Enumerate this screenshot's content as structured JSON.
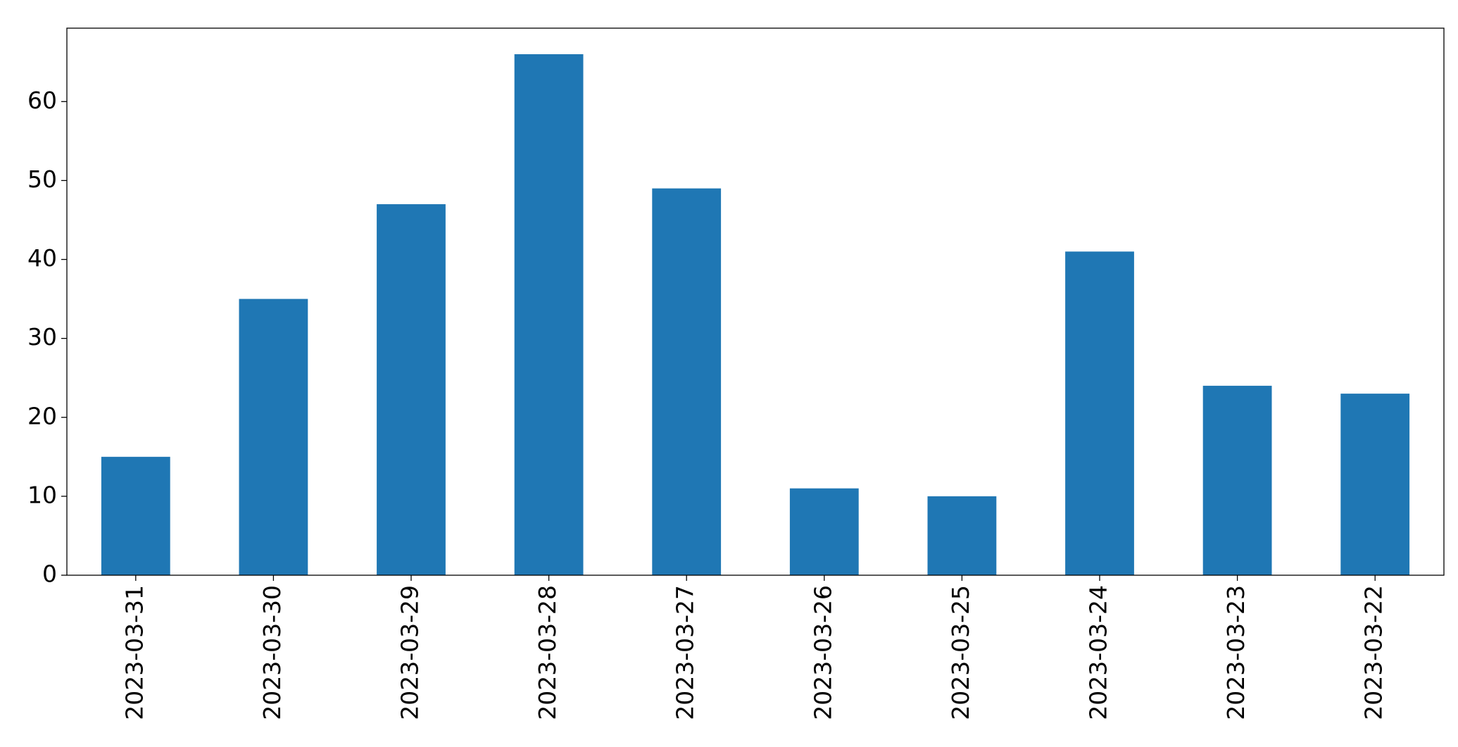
{
  "chart_data": {
    "type": "bar",
    "categories": [
      "2023-03-31",
      "2023-03-30",
      "2023-03-29",
      "2023-03-28",
      "2023-03-27",
      "2023-03-26",
      "2023-03-25",
      "2023-03-24",
      "2023-03-23",
      "2023-03-22"
    ],
    "values": [
      15,
      35,
      47,
      66,
      49,
      11,
      10,
      41,
      24,
      23
    ],
    "color": "#1f77b4",
    "ylim": [
      0,
      69.3
    ],
    "yticks": [
      0,
      10,
      20,
      30,
      40,
      50,
      60
    ],
    "grid": false
  }
}
